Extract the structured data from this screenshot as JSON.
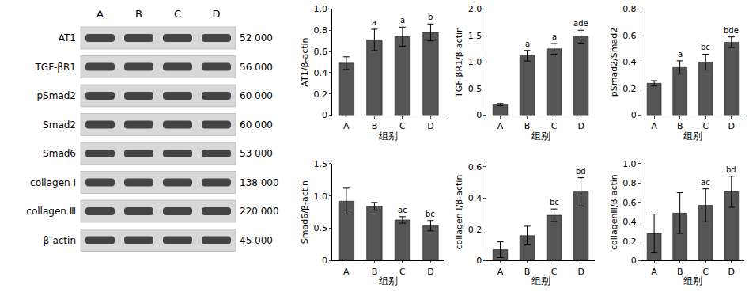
{
  "blot": {
    "lanes": [
      "A",
      "B",
      "C",
      "D"
    ],
    "rows": [
      {
        "label": "AT1",
        "mw": "52 000"
      },
      {
        "label": "TGF-βR1",
        "mw": "56 000"
      },
      {
        "label": "pSmad2",
        "mw": "60 000"
      },
      {
        "label": "Smad2",
        "mw": "60 000"
      },
      {
        "label": "Smad6",
        "mw": "53 000"
      },
      {
        "label": "collagen Ⅰ",
        "mw": "138 000"
      },
      {
        "label": "collagen Ⅲ",
        "mw": "220 000"
      },
      {
        "label": "β-actin",
        "mw": "45 000"
      }
    ]
  },
  "chart_data": [
    {
      "type": "bar",
      "xlabel": "组别",
      "ylabel": "AT1/β-actin",
      "categories": [
        "A",
        "B",
        "C",
        "D"
      ],
      "values": [
        0.49,
        0.71,
        0.74,
        0.78
      ],
      "error": [
        0.06,
        0.1,
        0.09,
        0.08
      ],
      "annotations": [
        null,
        "a",
        "a",
        "b"
      ],
      "color": "#555555",
      "grid": false,
      "ylim": [
        0,
        1
      ],
      "yticks": [
        0,
        0.2,
        0.4,
        0.6,
        0.8,
        {
          "value": 1,
          "label": "1.0"
        }
      ]
    },
    {
      "type": "bar",
      "xlabel": "组别",
      "ylabel": "TGF-βR1/β-actin",
      "categories": [
        "A",
        "B",
        "C",
        "D"
      ],
      "values": [
        0.2,
        1.12,
        1.25,
        1.48
      ],
      "error": [
        0.02,
        0.1,
        0.1,
        0.12
      ],
      "annotations": [
        null,
        "a",
        "a",
        "ade"
      ],
      "color": "#555555",
      "grid": false,
      "ylim": [
        0,
        2
      ],
      "yticks": [
        0,
        0.5,
        {
          "value": 1,
          "label": "1.0"
        },
        1.5,
        {
          "value": 2,
          "label": "2.0"
        }
      ]
    },
    {
      "type": "bar",
      "xlabel": "组别",
      "ylabel": "pSmad2/Smad2",
      "categories": [
        "A",
        "B",
        "C",
        "D"
      ],
      "values": [
        0.24,
        0.36,
        0.4,
        0.55
      ],
      "error": [
        0.02,
        0.05,
        0.06,
        0.04
      ],
      "annotations": [
        null,
        "a",
        "bc",
        "bde"
      ],
      "color": "#555555",
      "grid": false,
      "ylim": [
        0,
        0.8
      ],
      "yticks": [
        0,
        0.2,
        0.4,
        0.6,
        0.8
      ]
    },
    {
      "type": "bar",
      "xlabel": "组别",
      "ylabel": "Smad6/β-actin",
      "categories": [
        "A",
        "B",
        "C",
        "D"
      ],
      "values": [
        0.92,
        0.84,
        0.63,
        0.54
      ],
      "error": [
        0.2,
        0.06,
        0.05,
        0.08
      ],
      "annotations": [
        null,
        null,
        "ac",
        "bc"
      ],
      "color": "#555555",
      "grid": false,
      "ylim": [
        0,
        1.5
      ],
      "yticks": [
        0,
        0.5,
        {
          "value": 1,
          "label": "1.0"
        },
        1.5
      ]
    },
    {
      "type": "bar",
      "xlabel": "组别",
      "ylabel": "collagen Ⅰ/β-actin",
      "categories": [
        "A",
        "B",
        "C",
        "D"
      ],
      "values": [
        0.07,
        0.16,
        0.29,
        0.44
      ],
      "error": [
        0.05,
        0.06,
        0.04,
        0.09
      ],
      "annotations": [
        null,
        null,
        "bc",
        "bd"
      ],
      "color": "#555555",
      "grid": false,
      "ylim": [
        0,
        0.62
      ],
      "yticks": [
        0,
        0.2,
        0.4,
        0.6
      ]
    },
    {
      "type": "bar",
      "xlabel": "组别",
      "ylabel": "collagenⅢ/β-actin",
      "categories": [
        "A",
        "B",
        "C",
        "D"
      ],
      "values": [
        0.28,
        0.49,
        0.57,
        0.71
      ],
      "error": [
        0.2,
        0.21,
        0.17,
        0.16
      ],
      "annotations": [
        null,
        null,
        "ac",
        "bd"
      ],
      "color": "#555555",
      "grid": false,
      "ylim": [
        0,
        1
      ],
      "yticks": [
        0,
        0.2,
        0.4,
        0.6,
        0.8,
        {
          "value": 1,
          "label": "1.0"
        }
      ]
    }
  ]
}
